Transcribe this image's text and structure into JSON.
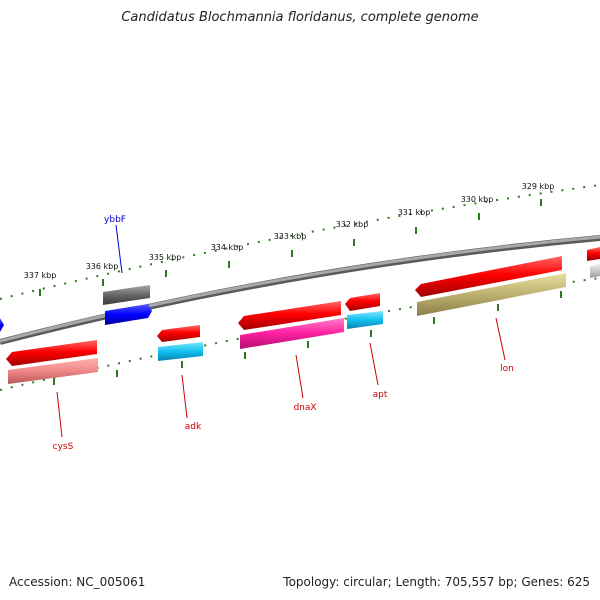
{
  "title": "Candidatus Blochmannia floridanus, complete genome",
  "accession": "Accession: NC_005061",
  "summary": "Topology: circular; Length: 705,557 bp; Genes: 625",
  "colors": {
    "backbone": "#8a8a8a",
    "ticks": "#2d7a1f",
    "label_red": "#cc0000",
    "label_blue": "#0000cc"
  },
  "scale_labels": [
    "329 kbp",
    "330 kbp",
    "331 kbp",
    "332 kbp",
    "333 kbp",
    "334 kbp",
    "335 kbp",
    "336 kbp",
    "337 kbp"
  ],
  "genes": [
    {
      "name": "ybbF",
      "color": "#0000cc"
    },
    {
      "name": "cysS",
      "color": "#cc0000"
    },
    {
      "name": "adk",
      "color": "#cc0000"
    },
    {
      "name": "dnaX",
      "color": "#cc0000"
    },
    {
      "name": "apt",
      "color": "#cc0000"
    },
    {
      "name": "lon",
      "color": "#cc0000"
    }
  ]
}
